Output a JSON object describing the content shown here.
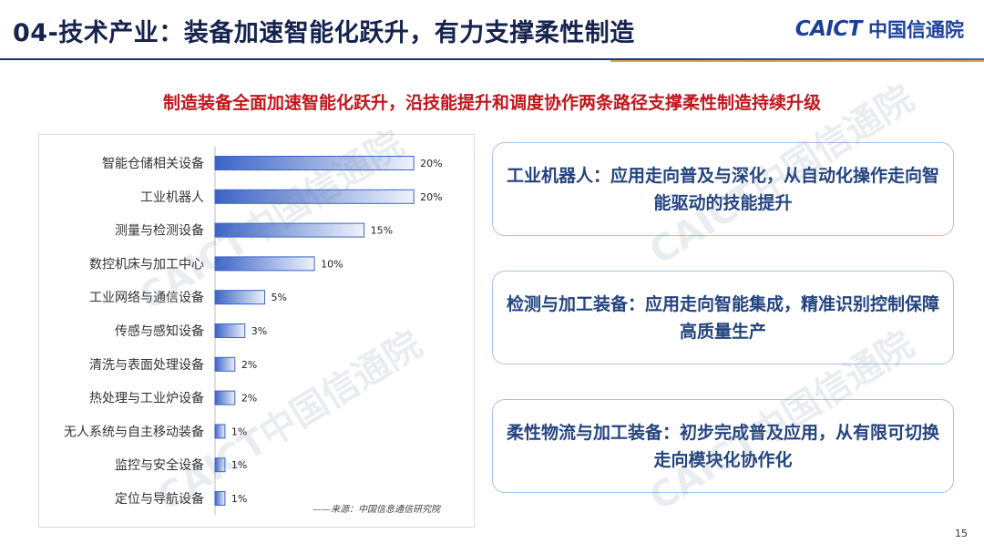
{
  "header": {
    "title": "04-技术产业：装备加速智能化跃升，有力支撑柔性制造",
    "logo_mark": "CAICT",
    "logo_text": "中国信通院"
  },
  "subtitle": "制造装备全面加速智能化跃升，沿技能提升和调度协作两条路径支撑柔性制造持续升级",
  "chart_data": {
    "type": "bar",
    "orientation": "horizontal",
    "categories": [
      "智能仓储相关设备",
      "工业机器人",
      "测量与检测设备",
      "数控机床与加工中心",
      "工业网络与通信设备",
      "传感与感知设备",
      "清洗与表面处理设备",
      "热处理与工业炉设备",
      "无人系统与自主移动装备",
      "监控与安全设备",
      "定位与导航设备"
    ],
    "values": [
      20,
      20,
      15,
      10,
      5,
      3,
      2,
      2,
      1,
      1,
      1
    ],
    "value_labels": [
      "20%",
      "20%",
      "15%",
      "10%",
      "5%",
      "3%",
      "2%",
      "2%",
      "1%",
      "1%",
      "1%"
    ],
    "xlim": [
      0,
      22
    ],
    "bar_color_start": "#3c63c6",
    "bar_color_end": "#eef2fb",
    "grid": false,
    "source": "——来源：中国信息通信研究院"
  },
  "cards": [
    {
      "text": "工业机器人：应用走向普及与深化，从自动化操作走向智能驱动的技能提升"
    },
    {
      "text": "检测与加工装备：应用走向智能集成，精准识别控制保障高质量生产"
    },
    {
      "text": "柔性物流与加工装备：初步完成普及应用，从有限可切换走向模块化协作化"
    }
  ],
  "page_number": "15",
  "watermark_text": "CAICT中国信通院",
  "colors": {
    "title": "#16234f",
    "accent_blue": "#1c3f9c",
    "subtitle_red": "#c0161c",
    "card_border": "#a9c3e6"
  }
}
